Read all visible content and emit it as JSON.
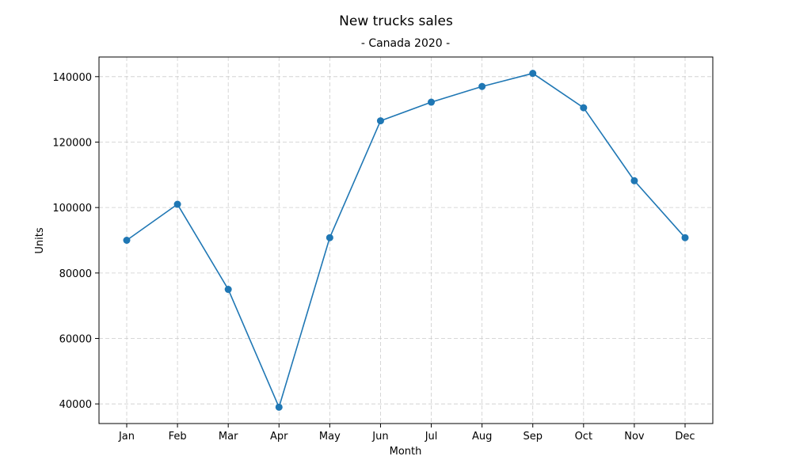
{
  "chart_data": {
    "type": "line",
    "title": "New trucks sales",
    "subtitle": "- Canada 2020 -",
    "xlabel": "Month",
    "ylabel": "Units",
    "categories": [
      "Jan",
      "Feb",
      "Mar",
      "Apr",
      "May",
      "Jun",
      "Jul",
      "Aug",
      "Sep",
      "Oct",
      "Nov",
      "Dec"
    ],
    "values": [
      90000,
      101000,
      75000,
      39000,
      90800,
      126500,
      132200,
      137000,
      141000,
      130500,
      108200,
      90800
    ],
    "ylim": [
      34000,
      146000
    ],
    "yticks": [
      40000,
      60000,
      80000,
      100000,
      120000,
      140000
    ],
    "grid": true,
    "markers": true,
    "color": "#1f77b4"
  }
}
